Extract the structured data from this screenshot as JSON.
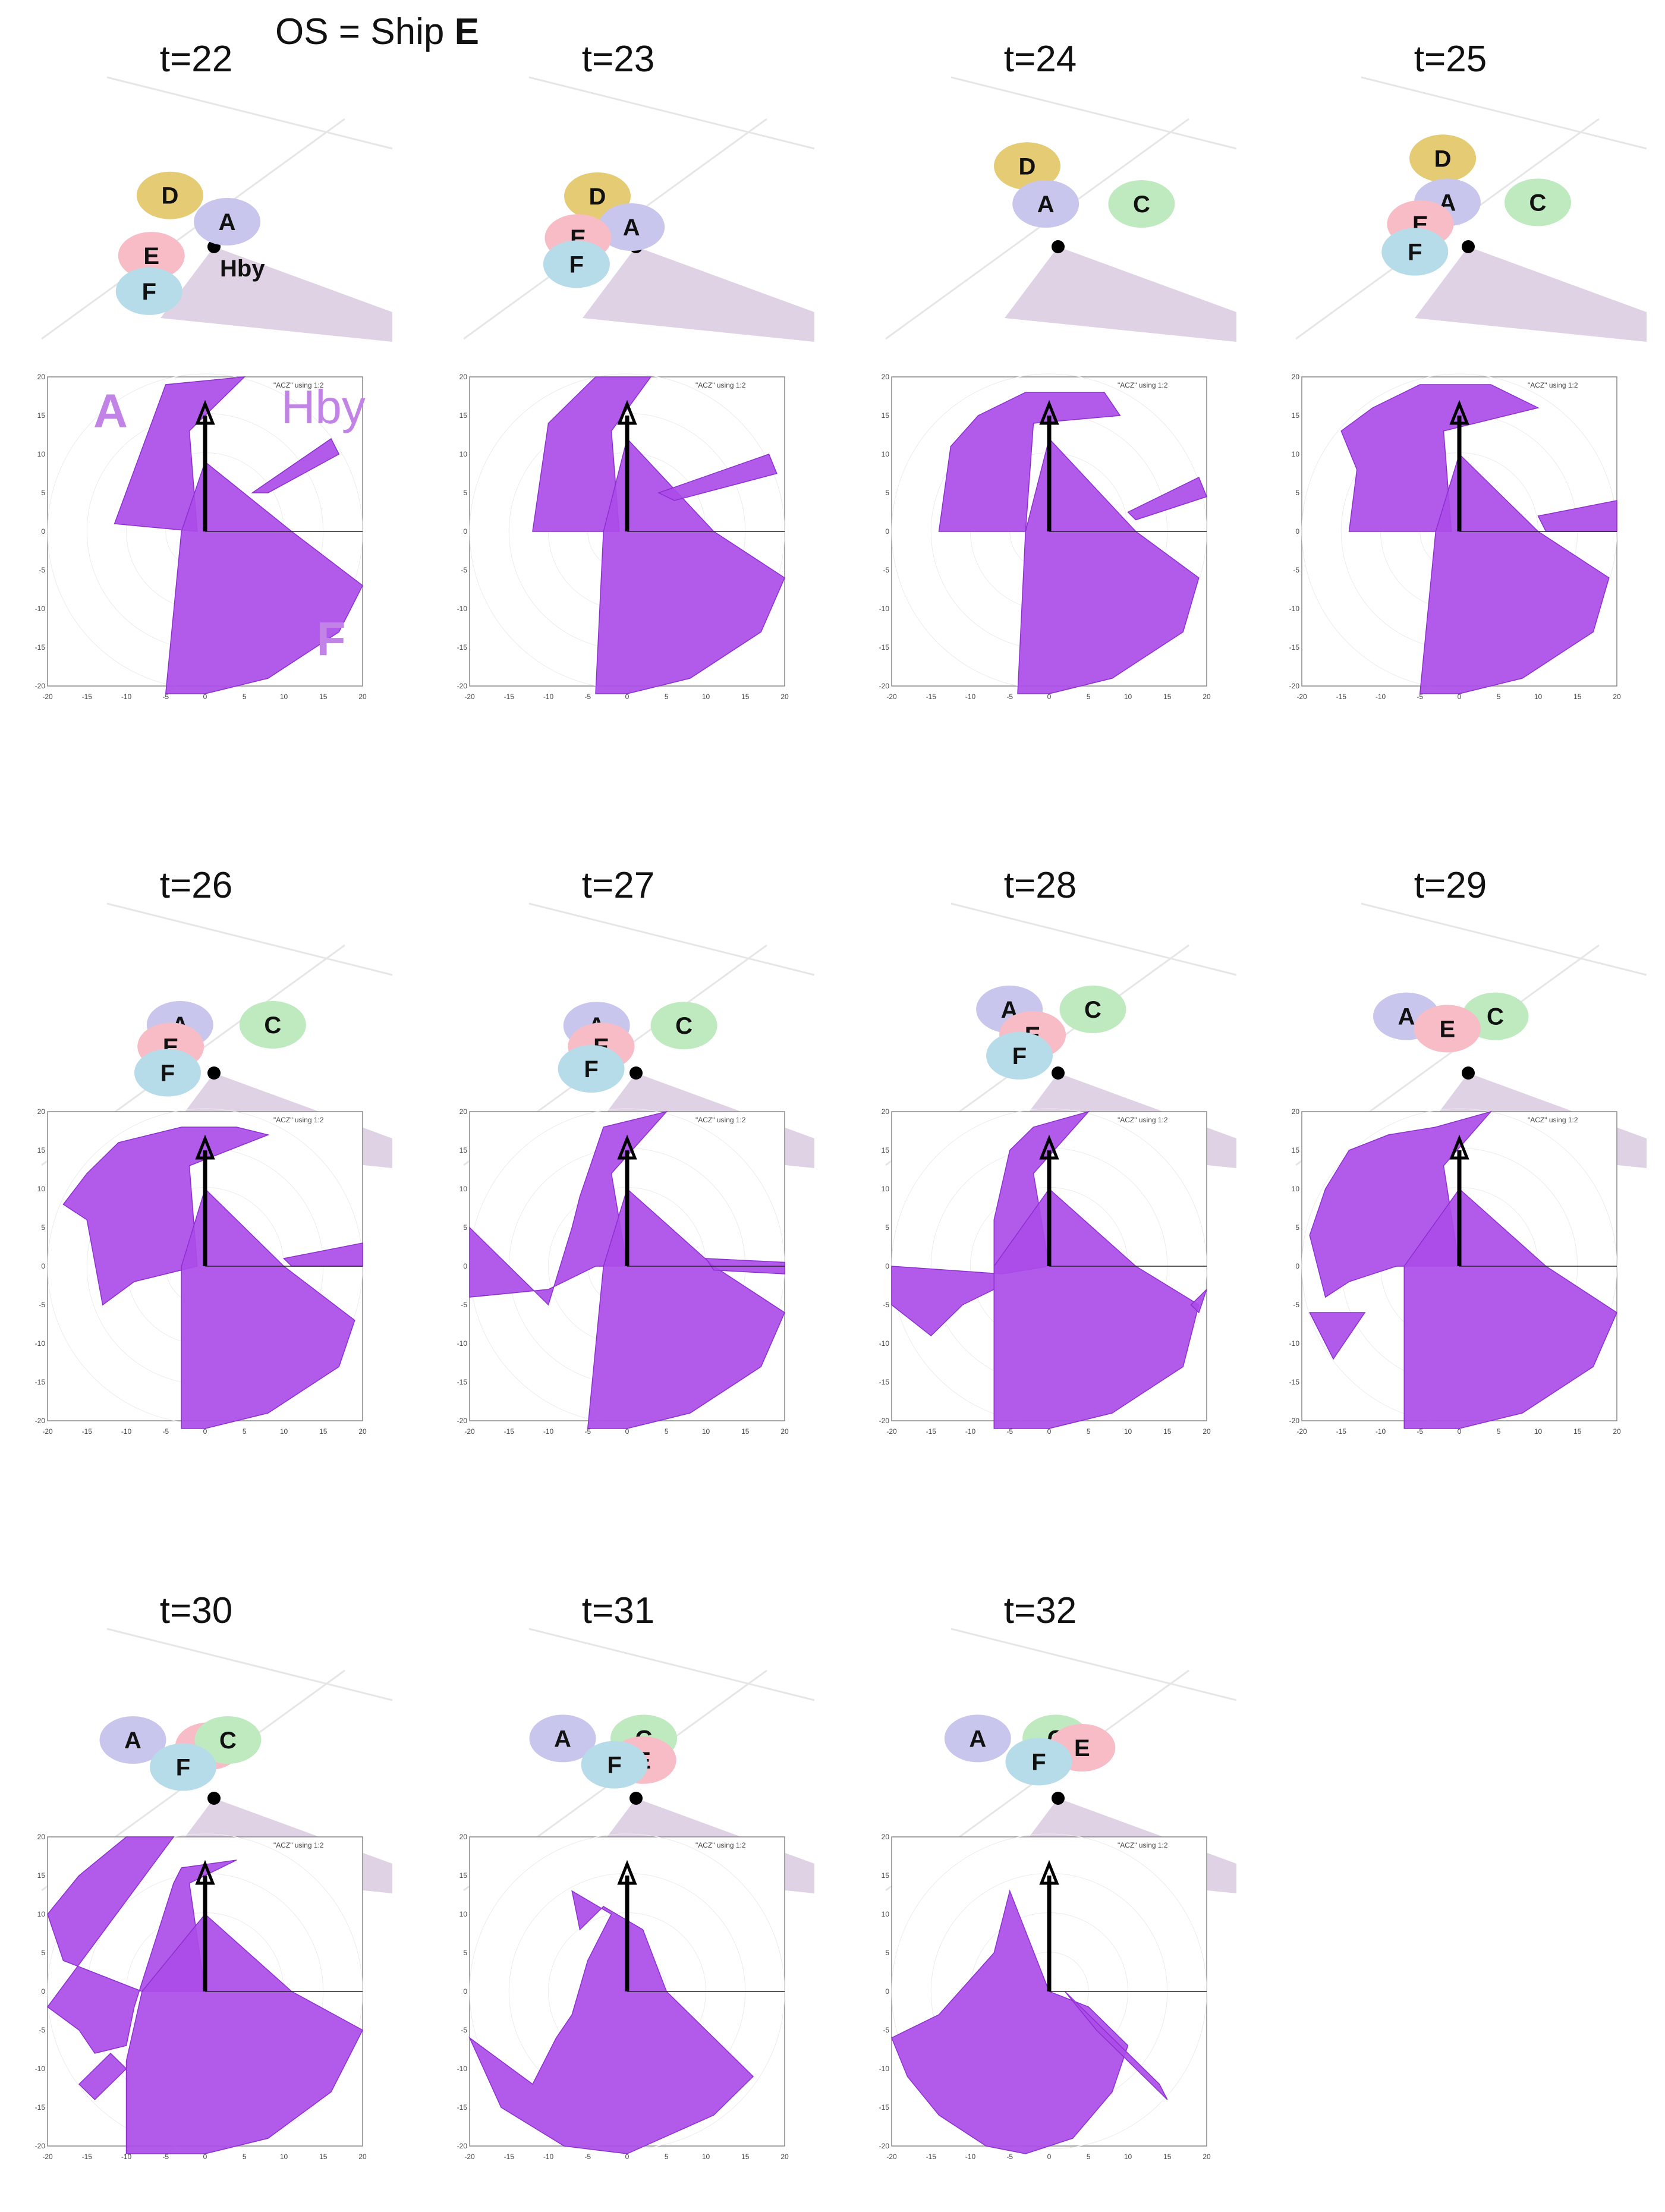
{
  "header": {
    "prefix": "OS = Ship ",
    "ship": "E"
  },
  "colors": {
    "A": "#c8c6ec",
    "C": "#bfeabf",
    "D": "#e5cb74",
    "E": "#f7bcc6",
    "F": "#b7dce9",
    "sector": "#dfd2e5",
    "obstacle": "#ab4ce8",
    "obstacle_edge": "#8d2fd0",
    "arrow": "#000000"
  },
  "panels": [
    {
      "t": "t=22",
      "ships": [
        {
          "id": "D",
          "x": -57,
          "y": -51
        },
        {
          "id": "A",
          "x": 17,
          "y": -17
        },
        {
          "id": "E",
          "x": -81,
          "y": 27
        },
        {
          "id": "F",
          "x": -84,
          "y": 73
        }
      ],
      "own_ship_label": "Hby",
      "polygons": [
        [
          [
            -11.5,
            1
          ],
          [
            -5,
            19
          ],
          [
            5,
            20
          ],
          [
            -2,
            13
          ],
          [
            -1,
            0
          ]
        ],
        [
          [
            0,
            9
          ],
          [
            11,
            0
          ],
          [
            20,
            -7
          ],
          [
            17,
            -13
          ],
          [
            8,
            -19
          ],
          [
            0,
            -21
          ],
          [
            -5,
            -21
          ],
          [
            -3,
            0
          ]
        ],
        [
          [
            6,
            5
          ],
          [
            16,
            12
          ],
          [
            17,
            10
          ],
          [
            8,
            5
          ]
        ]
      ],
      "annotations": [
        {
          "text": "A",
          "x": -12,
          "y": 13.5
        },
        {
          "text": "Hby",
          "x": 15,
          "y": 14
        },
        {
          "text": "F",
          "x": 16,
          "y": -16
        }
      ]
    },
    {
      "t": "t=23",
      "ships": [
        {
          "id": "D",
          "x": -50,
          "y": -50
        },
        {
          "id": "A",
          "x": -6,
          "y": -10
        },
        {
          "id": "E",
          "x": -75,
          "y": 4
        },
        {
          "id": "F",
          "x": -77,
          "y": 38
        }
      ],
      "polygons": [
        [
          [
            -12,
            0
          ],
          [
            -10,
            14
          ],
          [
            -4,
            20
          ],
          [
            3,
            20
          ],
          [
            -2,
            13
          ],
          [
            -1,
            0
          ]
        ],
        [
          [
            0,
            12
          ],
          [
            11,
            0
          ],
          [
            20,
            -6
          ],
          [
            17,
            -13
          ],
          [
            8,
            -19
          ],
          [
            0,
            -21
          ],
          [
            -4,
            -21
          ],
          [
            -3,
            0
          ]
        ],
        [
          [
            4,
            5
          ],
          [
            18,
            10
          ],
          [
            19,
            7.5
          ],
          [
            6,
            4
          ]
        ]
      ]
    },
    {
      "t": "t=24",
      "ships": [
        {
          "id": "D",
          "x": -40,
          "y": -89
        },
        {
          "id": "A",
          "x": -16,
          "y": -40
        },
        {
          "id": "C",
          "x": 108,
          "y": -40
        }
      ],
      "polygons": [
        [
          [
            -14,
            0
          ],
          [
            -12.5,
            11
          ],
          [
            -9,
            15
          ],
          [
            -3,
            18
          ],
          [
            7,
            18
          ],
          [
            9,
            15
          ],
          [
            -2,
            14
          ],
          [
            -3,
            0
          ]
        ],
        [
          [
            0,
            12
          ],
          [
            11,
            0
          ],
          [
            19,
            -6
          ],
          [
            17,
            -13
          ],
          [
            8,
            -19
          ],
          [
            0,
            -21
          ],
          [
            -4,
            -21
          ],
          [
            -3,
            0
          ]
        ],
        [
          [
            10,
            2.5
          ],
          [
            19,
            7
          ],
          [
            20,
            4.5
          ],
          [
            11,
            1.5
          ]
        ]
      ]
    },
    {
      "t": "t=25",
      "ships": [
        {
          "id": "D",
          "x": -33,
          "y": -99
        },
        {
          "id": "A",
          "x": -27,
          "y": -42
        },
        {
          "id": "C",
          "x": 90,
          "y": -42
        },
        {
          "id": "E",
          "x": -62,
          "y": -14
        },
        {
          "id": "F",
          "x": -69,
          "y": 22
        }
      ],
      "polygons": [
        [
          [
            -14,
            0
          ],
          [
            -13,
            8
          ],
          [
            -15,
            13
          ],
          [
            -11,
            16
          ],
          [
            -5,
            19
          ],
          [
            4,
            19
          ],
          [
            10,
            16
          ],
          [
            -2,
            13
          ],
          [
            -1,
            0
          ]
        ],
        [
          [
            0,
            10
          ],
          [
            10,
            0
          ],
          [
            19,
            -6
          ],
          [
            17,
            -13
          ],
          [
            8,
            -19
          ],
          [
            0,
            -21
          ],
          [
            -5,
            -21
          ],
          [
            -3,
            0
          ]
        ],
        [
          [
            10,
            2
          ],
          [
            20,
            4
          ],
          [
            20,
            0
          ],
          [
            11,
            0
          ]
        ]
      ]
    },
    {
      "t": "t=26",
      "ships": [
        {
          "id": "A",
          "x": -44,
          "y": -47
        },
        {
          "id": "C",
          "x": 76,
          "y": -47
        },
        {
          "id": "E",
          "x": -56,
          "y": -19
        },
        {
          "id": "F",
          "x": -60,
          "y": 15
        }
      ],
      "polygons": [
        [
          [
            -18,
            8
          ],
          [
            -15,
            12
          ],
          [
            -11,
            16
          ],
          [
            -7,
            17
          ],
          [
            -3,
            18
          ],
          [
            4,
            18
          ],
          [
            8,
            17
          ],
          [
            -2,
            13
          ],
          [
            -1,
            0
          ],
          [
            -9,
            -2
          ],
          [
            -13,
            -5
          ],
          [
            -15,
            6
          ]
        ],
        [
          [
            0,
            10
          ],
          [
            10,
            0
          ],
          [
            19,
            -7
          ],
          [
            17,
            -13
          ],
          [
            8,
            -19
          ],
          [
            0,
            -21
          ],
          [
            -3,
            -21
          ],
          [
            -3,
            0
          ]
        ],
        [
          [
            10,
            1
          ],
          [
            20,
            3
          ],
          [
            20,
            0
          ],
          [
            11,
            0
          ]
        ]
      ]
    },
    {
      "t": "t=27",
      "ships": [
        {
          "id": "A",
          "x": -51,
          "y": -46
        },
        {
          "id": "C",
          "x": 62,
          "y": -46
        },
        {
          "id": "E",
          "x": -45,
          "y": -19
        },
        {
          "id": "F",
          "x": -58,
          "y": 10
        }
      ],
      "polygons": [
        [
          [
            -20,
            5
          ],
          [
            -16,
            1
          ],
          [
            -12,
            -3
          ],
          [
            -10,
            -5
          ],
          [
            -7,
            5
          ],
          [
            -6,
            9
          ],
          [
            -3,
            18
          ],
          [
            5,
            20
          ],
          [
            -2,
            12
          ],
          [
            0,
            0
          ],
          [
            -4,
            0
          ],
          [
            -10,
            -3
          ],
          [
            -20,
            -4
          ]
        ],
        [
          [
            0,
            10
          ],
          [
            11,
            0
          ],
          [
            20,
            -6
          ],
          [
            17,
            -13
          ],
          [
            8,
            -19
          ],
          [
            0,
            -21
          ],
          [
            -5,
            -21
          ],
          [
            -3,
            0
          ]
        ],
        [
          [
            10,
            1
          ],
          [
            20,
            0.5
          ],
          [
            20,
            -1
          ],
          [
            11,
            -0.5
          ]
        ]
      ]
    },
    {
      "t": "t=28",
      "ships": [
        {
          "id": "A",
          "x": -63,
          "y": -67
        },
        {
          "id": "C",
          "x": 45,
          "y": -67
        },
        {
          "id": "E",
          "x": -33,
          "y": -34
        },
        {
          "id": "F",
          "x": -50,
          "y": -7
        }
      ],
      "polygons": [
        [
          [
            -20,
            -5
          ],
          [
            -15,
            -9
          ],
          [
            -11,
            -5
          ],
          [
            -7,
            -3
          ],
          [
            -7,
            6
          ],
          [
            -5,
            15
          ],
          [
            -2,
            18
          ],
          [
            5,
            20
          ],
          [
            -2,
            12
          ],
          [
            0,
            0
          ],
          [
            -6,
            -1
          ],
          [
            -20,
            0
          ]
        ],
        [
          [
            0,
            10
          ],
          [
            11,
            0
          ],
          [
            19,
            -5
          ],
          [
            17,
            -13
          ],
          [
            8,
            -19
          ],
          [
            0,
            -21
          ],
          [
            -7,
            -21
          ],
          [
            -7,
            0
          ]
        ],
        [
          [
            18,
            -5
          ],
          [
            20,
            -3
          ],
          [
            19,
            -6
          ]
        ]
      ]
    },
    {
      "t": "t=29",
      "ships": [
        {
          "id": "A",
          "x": -80,
          "y": -58
        },
        {
          "id": "C",
          "x": 35,
          "y": -58
        },
        {
          "id": "E",
          "x": -27,
          "y": -42
        }
      ],
      "polygons": [
        [
          [
            -17,
            10
          ],
          [
            -14,
            15
          ],
          [
            -9,
            17
          ],
          [
            -3,
            18
          ],
          [
            4,
            20
          ],
          [
            -2,
            13
          ],
          [
            0,
            0
          ],
          [
            -8,
            0
          ],
          [
            -14,
            -2
          ],
          [
            -17,
            -4
          ],
          [
            -19,
            4
          ]
        ],
        [
          [
            0,
            10
          ],
          [
            11,
            0
          ],
          [
            20,
            -6
          ],
          [
            17,
            -13
          ],
          [
            8,
            -19
          ],
          [
            0,
            -21
          ],
          [
            -7,
            -21
          ],
          [
            -7,
            0
          ]
        ],
        [
          [
            -19,
            -6
          ],
          [
            -12,
            -6
          ],
          [
            -16,
            -12
          ]
        ]
      ]
    },
    {
      "t": "t=30",
      "ships": [
        {
          "id": "A",
          "x": -105,
          "y": -60
        },
        {
          "id": "E",
          "x": -7,
          "y": -52
        },
        {
          "id": "C",
          "x": 18,
          "y": -60
        },
        {
          "id": "F",
          "x": -40,
          "y": -25
        }
      ],
      "polygons": [
        [
          [
            -20,
            -2
          ],
          [
            -16,
            -5
          ],
          [
            -14,
            -8
          ],
          [
            -10,
            -7
          ],
          [
            -9,
            -2
          ],
          [
            -4,
            14
          ],
          [
            -3,
            16
          ],
          [
            4,
            17
          ],
          [
            -2,
            14
          ],
          [
            0,
            0
          ],
          [
            -8,
            0
          ],
          [
            -18,
            4
          ],
          [
            -20,
            10
          ],
          [
            -16,
            15
          ],
          [
            -10,
            20
          ],
          [
            -4,
            20
          ]
        ],
        [
          [
            0,
            10
          ],
          [
            11,
            0
          ],
          [
            20,
            -5
          ],
          [
            16,
            -13
          ],
          [
            8,
            -19
          ],
          [
            0,
            -21
          ],
          [
            -10,
            -21
          ],
          [
            -10,
            -9
          ],
          [
            -8,
            0
          ]
        ],
        [
          [
            -16,
            -12
          ],
          [
            -12,
            -8
          ],
          [
            -10,
            -10
          ],
          [
            -14,
            -14
          ]
        ]
      ]
    },
    {
      "t": "t=31",
      "ships": [
        {
          "id": "A",
          "x": -95,
          "y": -62
        },
        {
          "id": "C",
          "x": 10,
          "y": -62
        },
        {
          "id": "E",
          "x": 9,
          "y": -34
        },
        {
          "id": "F",
          "x": -28,
          "y": -28
        }
      ],
      "polygons": [
        [
          [
            -20,
            -6
          ],
          [
            -16,
            -9
          ],
          [
            -12,
            -12
          ],
          [
            -9,
            -6
          ],
          [
            -7,
            -3
          ],
          [
            -5,
            4
          ],
          [
            -2,
            10
          ],
          [
            -7,
            13
          ],
          [
            -6,
            8
          ],
          [
            -3,
            11
          ],
          [
            2,
            8
          ],
          [
            5,
            0
          ],
          [
            16,
            -11
          ],
          [
            11,
            -16
          ],
          [
            0,
            -21
          ],
          [
            -8,
            -20
          ],
          [
            -16,
            -15
          ]
        ]
      ]
    },
    {
      "t": "t=32",
      "ships": [
        {
          "id": "A",
          "x": -104,
          "y": -62
        },
        {
          "id": "C",
          "x": -3,
          "y": -62
        },
        {
          "id": "E",
          "x": 31,
          "y": -50
        },
        {
          "id": "F",
          "x": -25,
          "y": -32
        }
      ],
      "polygons": [
        [
          [
            -20,
            -6
          ],
          [
            -14,
            -3
          ],
          [
            -7,
            5
          ],
          [
            -5,
            13
          ],
          [
            0,
            0
          ],
          [
            5,
            -2
          ],
          [
            10,
            -7
          ],
          [
            8,
            -13
          ],
          [
            3,
            -19
          ],
          [
            -3,
            -21
          ],
          [
            -8,
            -20
          ],
          [
            -14,
            -16
          ],
          [
            -18,
            -11
          ]
        ],
        [
          [
            2,
            0
          ],
          [
            14,
            -12
          ],
          [
            15,
            -14
          ],
          [
            6,
            -5
          ]
        ]
      ]
    }
  ],
  "plot": {
    "xlim": [
      -20,
      20
    ],
    "ylim": [
      -20,
      20
    ],
    "ticks": [
      "-20",
      "-15",
      "-10",
      "-5",
      "0",
      "5",
      "10",
      "15",
      "20"
    ],
    "key": "\"ACZ\" using 1:2"
  }
}
